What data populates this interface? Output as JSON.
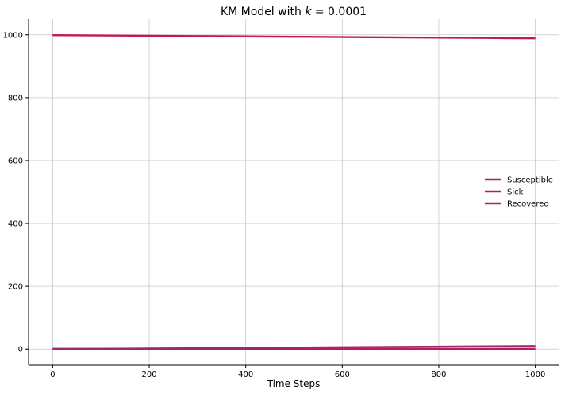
{
  "chart_data": {
    "type": "line",
    "title_prefix": "KM Model with ",
    "title_var": "k",
    "title_suffix": " = 0.0001",
    "xlabel": "Time Steps",
    "ylabel": "",
    "xlim": [
      -50,
      1050
    ],
    "ylim": [
      -50,
      1050
    ],
    "xticks": [
      0,
      200,
      400,
      600,
      800,
      1000
    ],
    "yticks": [
      0,
      200,
      400,
      600,
      800,
      1000
    ],
    "grid": true,
    "legend_position": "center-right",
    "series": [
      {
        "name": "Susceptible",
        "color": "#c2185b",
        "x": [
          0,
          100,
          200,
          300,
          400,
          500,
          600,
          700,
          800,
          900,
          1000
        ],
        "y": [
          999,
          998,
          997,
          996,
          995,
          994,
          993,
          992,
          991,
          990,
          989
        ]
      },
      {
        "name": "Sick",
        "color": "#c2185b",
        "x": [
          0,
          100,
          200,
          300,
          400,
          500,
          600,
          700,
          800,
          900,
          1000
        ],
        "y": [
          1,
          1,
          1,
          1,
          1,
          1,
          1,
          1,
          1,
          1,
          1
        ]
      },
      {
        "name": "Recovered",
        "color": "#9c2a6e",
        "x": [
          0,
          100,
          200,
          300,
          400,
          500,
          600,
          700,
          800,
          900,
          1000
        ],
        "y": [
          0,
          1,
          2,
          3,
          4,
          5,
          6,
          7,
          8,
          9,
          10
        ]
      }
    ]
  }
}
